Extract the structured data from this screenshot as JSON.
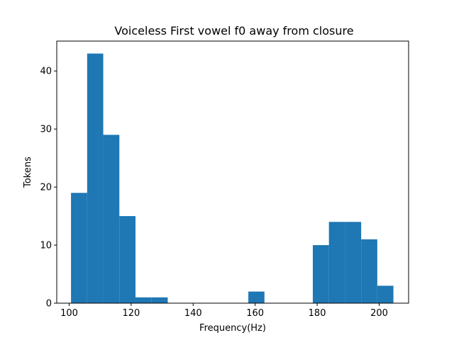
{
  "chart_data": {
    "type": "bar",
    "title": "Voiceless First vowel f0 away from closure",
    "xlabel": "Frequency(Hz)",
    "ylabel": "Tokens",
    "xlim": [
      96.0,
      209.5
    ],
    "ylim": [
      0,
      45.15
    ],
    "x_ticks": [
      100,
      120,
      140,
      160,
      180,
      200
    ],
    "y_ticks": [
      0,
      10,
      20,
      30,
      40
    ],
    "bin_edges": [
      100.6,
      105.8,
      111.0,
      116.2,
      121.4,
      126.6,
      131.8,
      137.0,
      142.2,
      147.4,
      152.6,
      157.8,
      163.0,
      168.2,
      173.4,
      178.6,
      183.8,
      189.0,
      194.2,
      199.4,
      204.6
    ],
    "values": [
      19,
      43,
      29,
      15,
      1,
      1,
      0,
      0,
      0,
      0,
      0,
      2,
      0,
      0,
      0,
      10,
      14,
      14,
      11,
      3
    ],
    "bar_color": "#1f77b4",
    "grid": false
  }
}
